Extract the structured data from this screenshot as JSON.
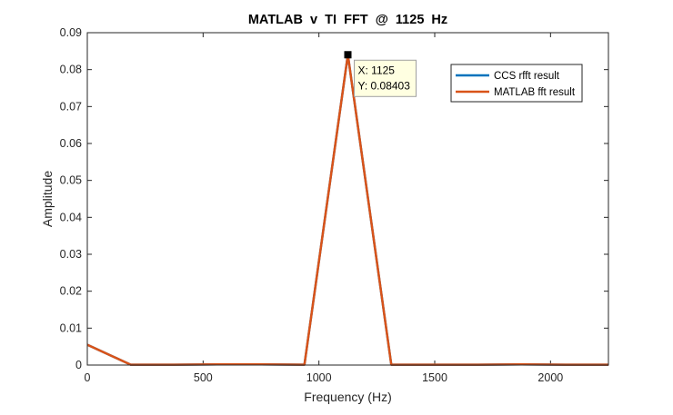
{
  "chart_data": {
    "type": "line",
    "title": "MATLAB  v  TI  FFT  @  1125  Hz",
    "xlabel": "Frequency (Hz)",
    "ylabel": "Amplitude",
    "xlim": [
      0,
      2250
    ],
    "ylim": [
      0,
      0.09
    ],
    "xticks": [
      0,
      500,
      1000,
      1500,
      2000
    ],
    "xtick_labels": [
      "0",
      "500",
      "1000",
      "1500",
      "2000"
    ],
    "yticks": [
      0,
      0.01,
      0.02,
      0.03,
      0.04,
      0.05,
      0.06,
      0.07,
      0.08,
      0.09
    ],
    "ytick_labels": [
      "0",
      "0.01",
      "0.02",
      "0.03",
      "0.04",
      "0.05",
      "0.06",
      "0.07",
      "0.08",
      "0.09"
    ],
    "grid": false,
    "legend_location": "top-right",
    "series": [
      {
        "name": "CCS rfft result",
        "color": "#0072BD",
        "x": [
          0,
          187.5,
          375,
          562.5,
          750,
          937.5,
          1125,
          1312.5,
          1500,
          1687.5,
          1875,
          2062.5,
          2250
        ],
        "y": [
          0.0055,
          0.0001,
          0.0001,
          0.0002,
          0.0002,
          0.0001,
          0.08403,
          0.0001,
          0.0001,
          0.0001,
          0.0002,
          0.0001,
          0.0001
        ]
      },
      {
        "name": "MATLAB fft result",
        "color": "#D95319",
        "x": [
          0,
          187.5,
          375,
          562.5,
          750,
          937.5,
          1125,
          1312.5,
          1500,
          1687.5,
          1875,
          2062.5,
          2250
        ],
        "y": [
          0.0055,
          0.0001,
          0.0001,
          0.0002,
          0.0002,
          0.0001,
          0.08403,
          0.0001,
          0.0001,
          0.0001,
          0.0002,
          0.0001,
          0.0001
        ]
      }
    ],
    "datatip": {
      "x": 1125,
      "y": 0.08403,
      "x_text": "X: 1125",
      "y_text": "Y: 0.08403"
    }
  }
}
